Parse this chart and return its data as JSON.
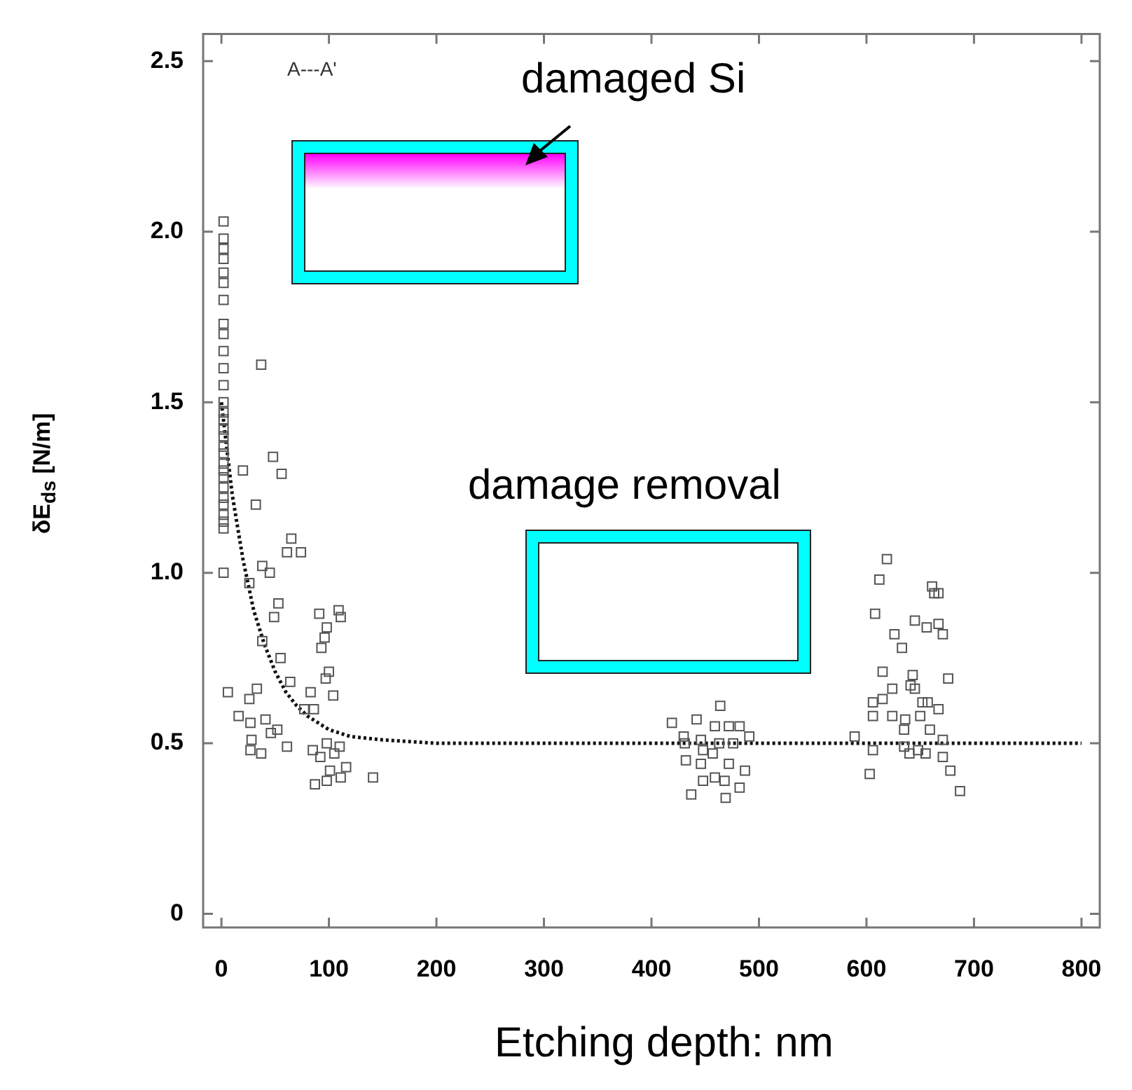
{
  "chart_data": {
    "type": "scatter",
    "xlabel": "Etching depth: nm",
    "ylabel": "δE$_{ds}$ [N/m]",
    "xlim": [
      -17,
      817
    ],
    "ylim": [
      -0.04,
      2.58
    ],
    "xticks": [
      0,
      100,
      200,
      300,
      400,
      500,
      600,
      700,
      800
    ],
    "yticks": [
      0,
      0.5,
      {
        "value": 1,
        "label": "1.0"
      },
      1.5,
      {
        "value": 2,
        "label": "2.0"
      },
      2.5
    ],
    "grid": false,
    "legend": false,
    "annotations": [
      "A---A'",
      "damaged Si",
      "damage removal"
    ],
    "series": [
      {
        "type": "scatter",
        "marker": "square",
        "color": "#555555",
        "x": [
          2,
          2,
          2,
          2,
          2,
          2,
          2,
          2,
          2,
          2,
          2,
          2,
          2,
          2,
          2,
          2,
          2,
          2,
          2,
          2,
          2,
          2,
          2,
          2,
          2,
          2,
          2,
          2,
          2,
          37,
          20,
          48,
          56,
          32,
          65,
          61,
          74,
          38,
          45,
          26,
          53,
          49,
          91,
          109,
          111,
          98,
          96,
          93,
          38,
          55,
          6,
          33,
          64,
          83,
          100,
          97,
          104,
          26,
          77,
          86,
          16,
          27,
          41,
          46,
          52,
          28,
          61,
          27,
          37,
          85,
          92,
          98,
          105,
          110,
          116,
          111,
          98,
          87,
          141,
          101,
          464,
          419,
          442,
          459,
          472,
          482,
          430,
          491,
          446,
          431,
          463,
          476,
          448,
          432,
          457,
          472,
          446,
          487,
          459,
          448,
          468,
          482,
          437,
          469,
          619,
          612,
          661,
          663,
          667,
          608,
          645,
          667,
          656,
          671,
          626,
          633,
          615,
          643,
          676,
          624,
          641,
          645,
          606,
          615,
          652,
          657,
          606,
          624,
          667,
          636,
          650,
          635,
          659,
          589,
          606,
          635,
          640,
          648,
          655,
          671,
          671,
          678,
          603,
          687
        ],
        "values": [
          2.03,
          1.98,
          1.95,
          1.92,
          1.88,
          1.85,
          1.8,
          1.73,
          1.7,
          1.65,
          1.6,
          1.55,
          1.5,
          1.47,
          1.45,
          1.42,
          1.4,
          1.37,
          1.35,
          1.32,
          1.3,
          1.28,
          1.25,
          1.22,
          1.2,
          1.17,
          1.15,
          1.13,
          1.0,
          1.61,
          1.3,
          1.34,
          1.29,
          1.2,
          1.1,
          1.06,
          1.06,
          1.02,
          1.0,
          0.97,
          0.91,
          0.87,
          0.88,
          0.89,
          0.87,
          0.84,
          0.81,
          0.78,
          0.8,
          0.75,
          0.65,
          0.66,
          0.68,
          0.65,
          0.71,
          0.69,
          0.64,
          0.63,
          0.6,
          0.6,
          0.58,
          0.56,
          0.57,
          0.53,
          0.54,
          0.51,
          0.49,
          0.48,
          0.47,
          0.48,
          0.46,
          0.5,
          0.47,
          0.49,
          0.43,
          0.4,
          0.39,
          0.38,
          0.4,
          0.42,
          0.61,
          0.56,
          0.57,
          0.55,
          0.55,
          0.55,
          0.52,
          0.52,
          0.51,
          0.5,
          0.5,
          0.5,
          0.48,
          0.45,
          0.47,
          0.44,
          0.44,
          0.42,
          0.4,
          0.39,
          0.39,
          0.37,
          0.35,
          0.34,
          1.04,
          0.98,
          0.96,
          0.94,
          0.94,
          0.88,
          0.86,
          0.85,
          0.84,
          0.82,
          0.82,
          0.78,
          0.71,
          0.7,
          0.69,
          0.66,
          0.67,
          0.66,
          0.62,
          0.63,
          0.62,
          0.62,
          0.58,
          0.58,
          0.6,
          0.57,
          0.58,
          0.54,
          0.54,
          0.52,
          0.48,
          0.49,
          0.47,
          0.48,
          0.47,
          0.51,
          0.46,
          0.42,
          0.41,
          0.36
        ]
      },
      {
        "type": "line",
        "marker": "none",
        "line_style": "dotted",
        "color": "#111111",
        "x": [
          0,
          10,
          20,
          30,
          40,
          50,
          60,
          70,
          80,
          90,
          100,
          120,
          150,
          200,
          800
        ],
        "values": [
          1.5,
          1.23,
          1.04,
          0.89,
          0.79,
          0.71,
          0.65,
          0.61,
          0.58,
          0.56,
          0.54,
          0.52,
          0.51,
          0.5,
          0.5
        ]
      }
    ]
  }
}
